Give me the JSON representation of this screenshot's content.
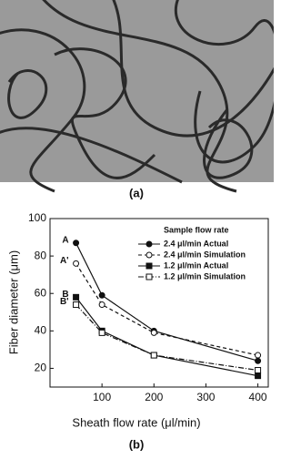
{
  "chart_data": {
    "type": "line",
    "photo_caption": "(a)",
    "caption": "(b)",
    "x_label": "Sheath flow rate (μl/min)",
    "y_label": "Fiber diameter (μm)",
    "legend_title": "Sample flow rate",
    "x": [
      50,
      100,
      200,
      400
    ],
    "series": [
      {
        "name": "2.4 μl/min Actual",
        "color": "#111111",
        "marker": "circle",
        "filled": true,
        "dash": "solid",
        "values": [
          87,
          59,
          40,
          24
        ]
      },
      {
        "name": "2.4 μl/min Simulation",
        "color": "#111111",
        "marker": "circle",
        "filled": false,
        "dash": "dashed",
        "values": [
          76,
          54,
          39,
          27
        ]
      },
      {
        "name": "1.2 μl/min Actual",
        "color": "#111111",
        "marker": "square",
        "filled": true,
        "dash": "solid",
        "values": [
          58,
          40,
          27,
          16
        ]
      },
      {
        "name": "1.2 μl/min Simulation",
        "color": "#111111",
        "marker": "square",
        "filled": false,
        "dash": "dashdot",
        "values": [
          54,
          39,
          27,
          19
        ]
      }
    ],
    "annotations": [
      {
        "text": "A",
        "series": 0
      },
      {
        "text": "A'",
        "series": 1
      },
      {
        "text": "B",
        "series": 2
      },
      {
        "text": "B'",
        "series": 3
      }
    ],
    "xlim": [
      0,
      420
    ],
    "xticks": [
      100,
      200,
      300,
      400
    ],
    "ylim": [
      10,
      100
    ],
    "yticks": [
      20,
      40,
      60,
      80,
      100
    ]
  }
}
